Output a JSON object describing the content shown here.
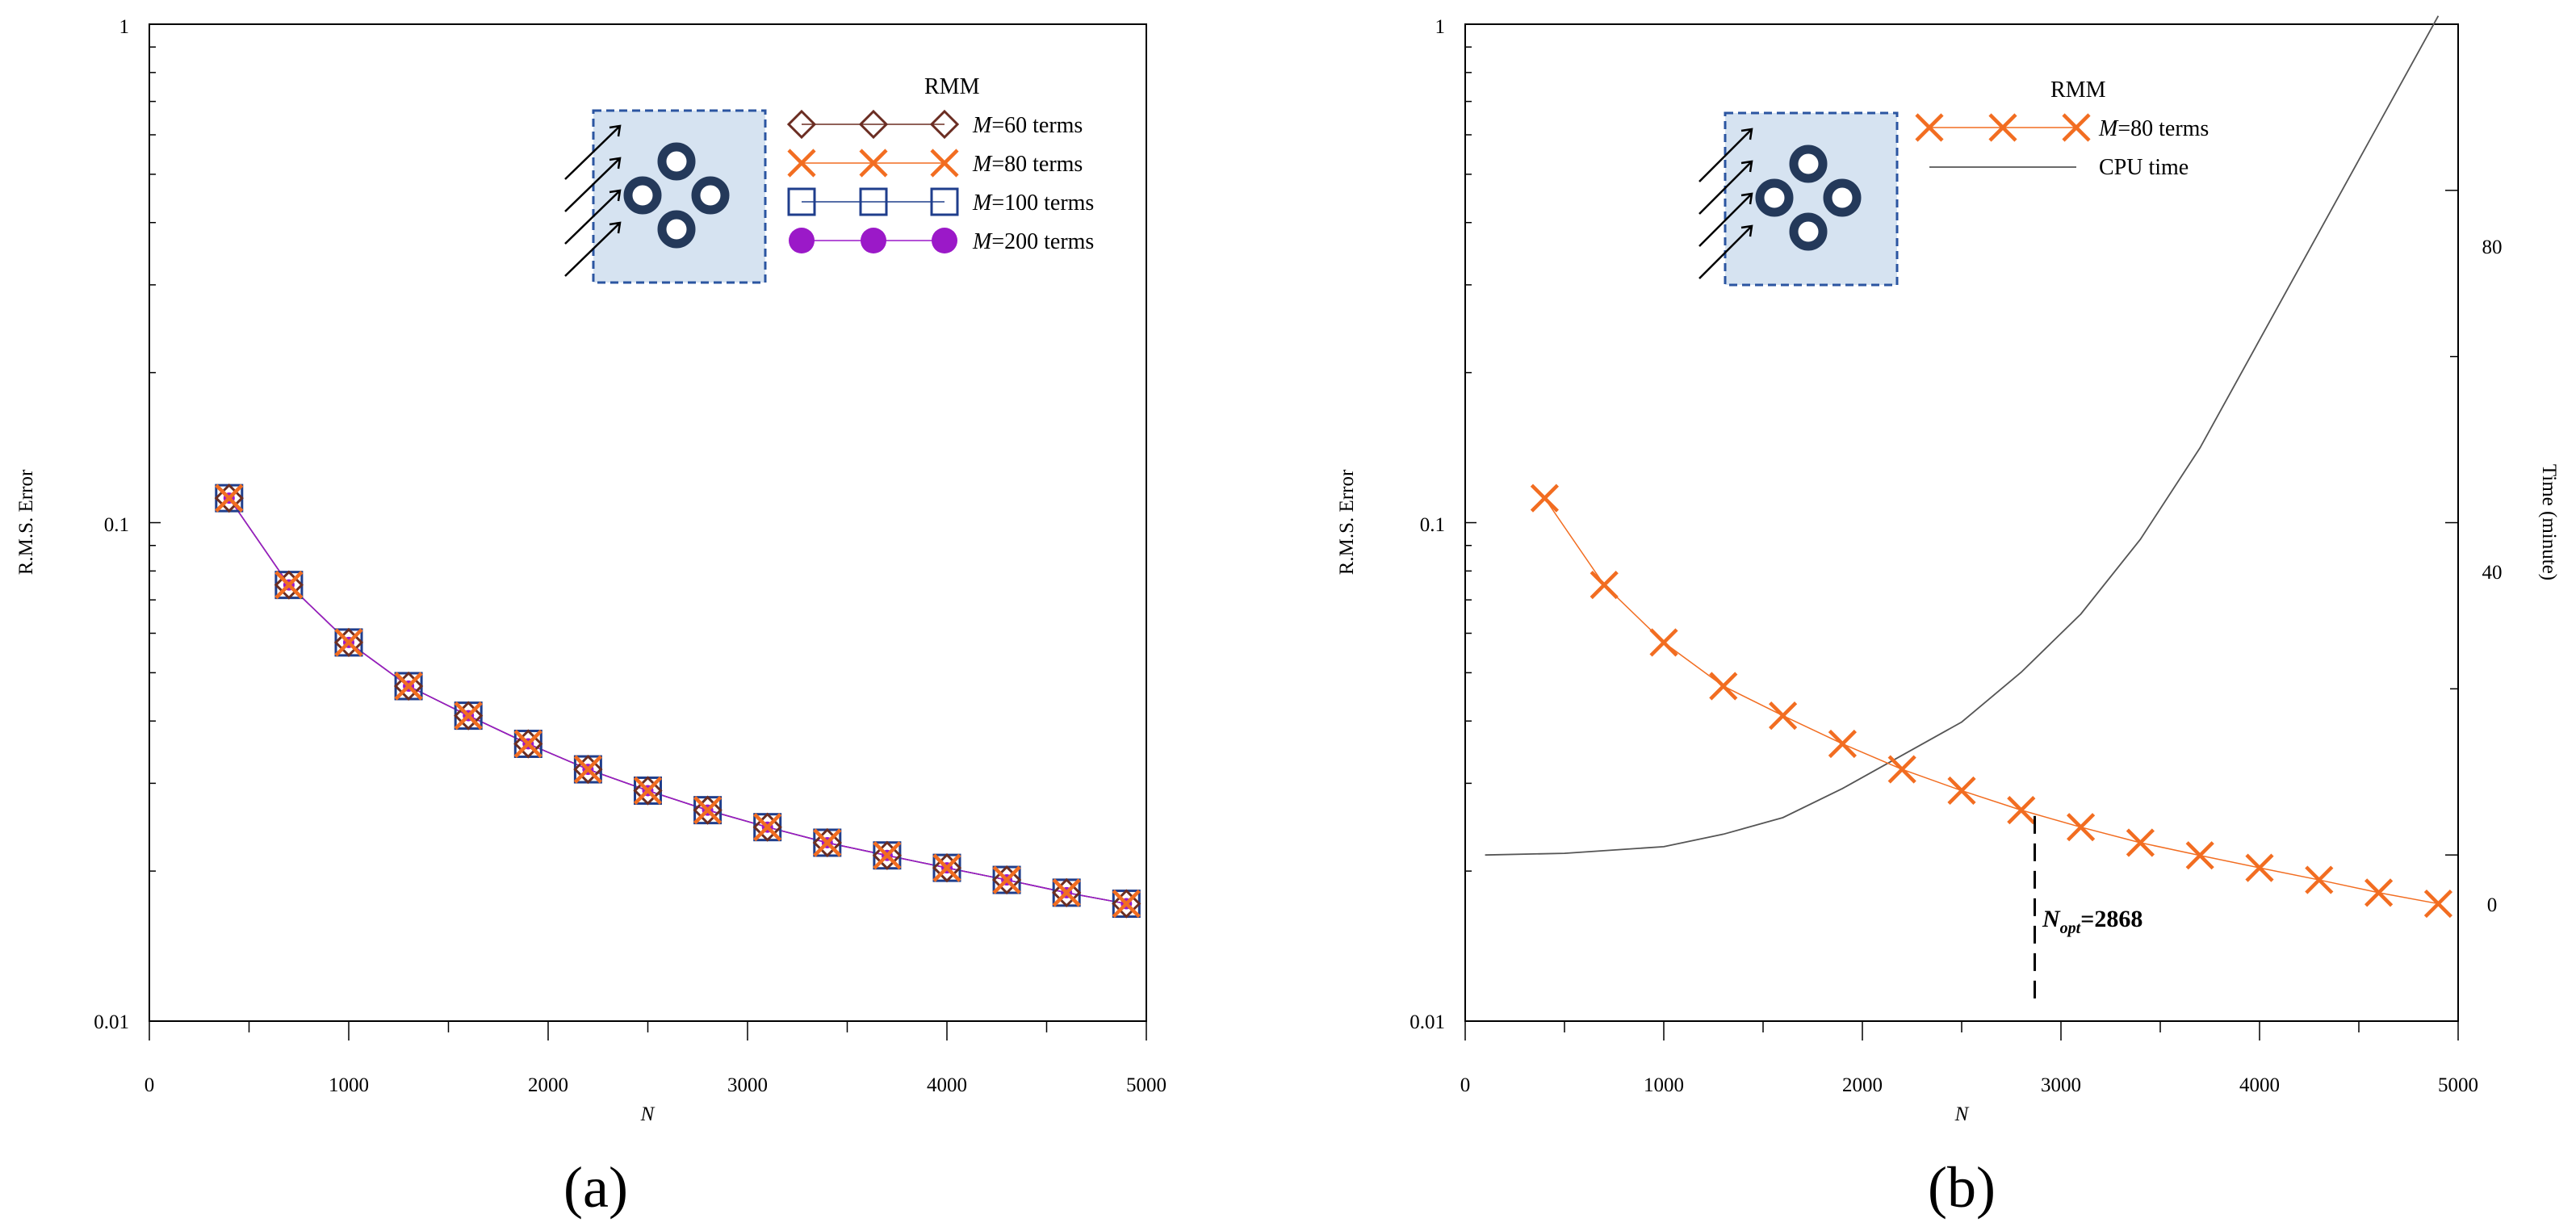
{
  "chart_data": [
    {
      "id": "a",
      "type": "line",
      "panel_label": "(a)",
      "xlabel": "N",
      "ylabel": "R.M.S. Error",
      "xlim": [
        0,
        5000
      ],
      "ylim": [
        0.01,
        1
      ],
      "yscale": "log",
      "xticks": [
        "0",
        "1000",
        "2000",
        "3000",
        "4000",
        "5000"
      ],
      "yticks": [
        "0.01",
        "0.1",
        "1"
      ],
      "legend_title": "RMM",
      "x": [
        400,
        700,
        1000,
        1300,
        1600,
        1900,
        2200,
        2500,
        2800,
        3100,
        3400,
        3700,
        4000,
        4300,
        4600,
        4900
      ],
      "series": [
        {
          "name": "M=60 terms",
          "label_m": "M",
          "label_rest": "=60 terms",
          "marker": "diamond",
          "color": "#6b2d22",
          "values": [
            0.112,
            0.075,
            0.0575,
            0.047,
            0.041,
            0.036,
            0.032,
            0.029,
            0.0265,
            0.0245,
            0.0228,
            0.0215,
            0.0203,
            0.0192,
            0.0181,
            0.0172
          ]
        },
        {
          "name": "M=80 terms",
          "label_m": "M",
          "label_rest": "=80 terms",
          "marker": "cross",
          "color": "#f26d21",
          "values": [
            0.112,
            0.075,
            0.0575,
            0.047,
            0.041,
            0.036,
            0.032,
            0.029,
            0.0265,
            0.0245,
            0.0228,
            0.0215,
            0.0203,
            0.0192,
            0.0181,
            0.0172
          ]
        },
        {
          "name": "M=100 terms",
          "label_m": "M",
          "label_rest": "=100 terms",
          "marker": "square",
          "color": "#1f3e8c",
          "values": [
            0.112,
            0.075,
            0.0575,
            0.047,
            0.041,
            0.036,
            0.032,
            0.029,
            0.0265,
            0.0245,
            0.0228,
            0.0215,
            0.0203,
            0.0192,
            0.0181,
            0.0172
          ]
        },
        {
          "name": "M=200 terms",
          "label_m": "M",
          "label_rest": "=200 terms",
          "marker": "circle",
          "color": "#9b19c8",
          "values": [
            0.112,
            0.075,
            0.0575,
            0.047,
            0.041,
            0.036,
            0.032,
            0.029,
            0.0265,
            0.0245,
            0.0228,
            0.0215,
            0.0203,
            0.0192,
            0.0181,
            0.0172
          ]
        }
      ]
    },
    {
      "id": "b",
      "type": "line",
      "panel_label": "(b)",
      "xlabel": "N",
      "ylabel": "R.M.S. Error",
      "y2label": "Time (minute)",
      "xlim": [
        0,
        5000
      ],
      "ylim": [
        0.01,
        1
      ],
      "yscale": "log",
      "y2lim": [
        -20,
        100
      ],
      "xticks": [
        "0",
        "1000",
        "2000",
        "3000",
        "4000",
        "5000"
      ],
      "yticks": [
        "0.01",
        "0.1",
        "1"
      ],
      "y2ticks": [
        "0",
        "40",
        "80"
      ],
      "legend_title": "RMM",
      "series": [
        {
          "name": "M=80 terms",
          "label_m": "M",
          "label_rest": "=80 terms",
          "marker": "cross",
          "color": "#f26d21",
          "axis": "left",
          "x": [
            400,
            700,
            1000,
            1300,
            1600,
            1900,
            2200,
            2500,
            2800,
            3100,
            3400,
            3700,
            4000,
            4300,
            4600,
            4900
          ],
          "values": [
            0.112,
            0.075,
            0.0575,
            0.047,
            0.041,
            0.036,
            0.032,
            0.029,
            0.0265,
            0.0245,
            0.0228,
            0.0215,
            0.0203,
            0.0192,
            0.0181,
            0.0172
          ]
        },
        {
          "name": "CPU time",
          "marker": "none",
          "color": "#555555",
          "axis": "right",
          "x": [
            100,
            500,
            1000,
            1300,
            1600,
            1900,
            2200,
            2500,
            2800,
            3100,
            3400,
            3700,
            4000,
            4300,
            4600,
            4900
          ],
          "values": [
            0,
            0.2,
            1,
            2.5,
            4.5,
            8,
            12,
            16,
            22,
            29,
            38,
            49,
            62,
            75,
            88,
            101
          ]
        }
      ],
      "annotation": {
        "x": 2868,
        "label_n": "N",
        "label_sub": "opt",
        "label_rest": "=2868"
      }
    }
  ]
}
